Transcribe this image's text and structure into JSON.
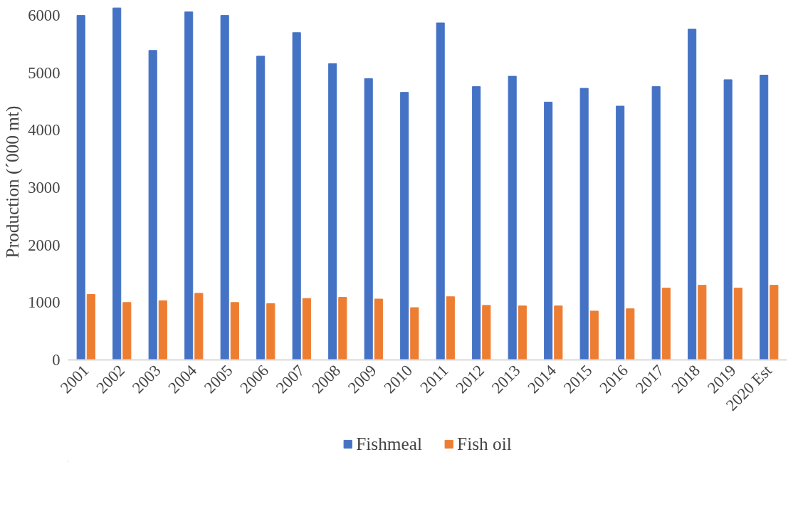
{
  "chart_data": {
    "type": "bar",
    "ylabel": "Production (ˊ000 mt)",
    "categories": [
      "2001",
      "2002",
      "2003",
      "2004",
      "2005",
      "2006",
      "2007",
      "2008",
      "2009",
      "2010",
      "2011",
      "2012",
      "2013",
      "2014",
      "2015",
      "2016",
      "2017",
      "2018",
      "2019",
      "2020 Est"
    ],
    "series": [
      {
        "name": "Fishmeal",
        "color": "#4472c4",
        "values": [
          6000,
          6130,
          5390,
          6060,
          6000,
          5290,
          5700,
          5160,
          4900,
          4660,
          5870,
          4760,
          4940,
          4490,
          4730,
          4420,
          4760,
          5760,
          4880,
          4960
        ]
      },
      {
        "name": "Fish oil",
        "color": "#ed7d31",
        "values": [
          1140,
          1000,
          1030,
          1160,
          1000,
          980,
          1070,
          1090,
          1060,
          910,
          1100,
          950,
          940,
          940,
          850,
          890,
          1250,
          1300,
          1250,
          1300
        ]
      }
    ],
    "ylim": [
      0,
      6200
    ],
    "yticks": [
      0,
      1000,
      2000,
      3000,
      4000,
      5000,
      6000
    ],
    "grid": false,
    "legend": "bottom"
  }
}
